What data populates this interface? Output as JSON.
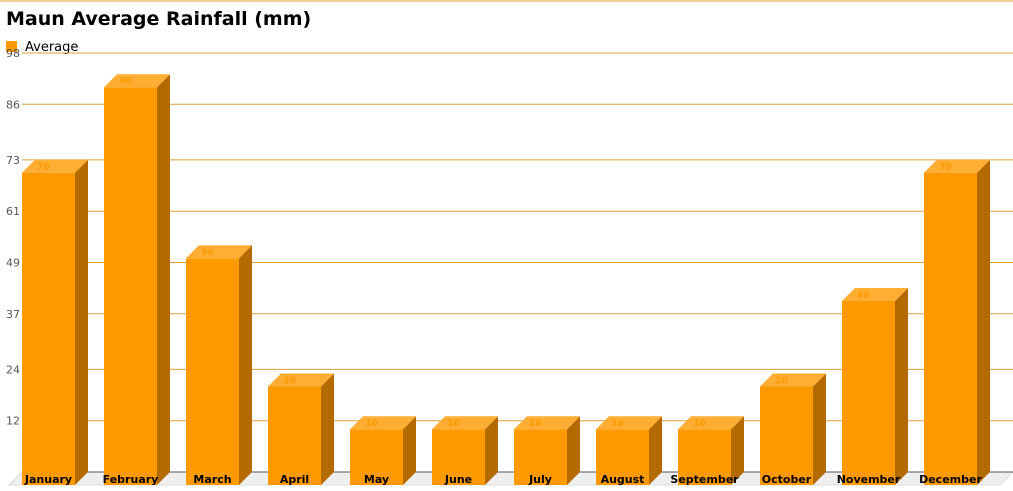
{
  "chart_data": {
    "type": "bar",
    "title": "Maun Average Rainfall (mm)",
    "categories": [
      "January",
      "February",
      "March",
      "April",
      "May",
      "June",
      "July",
      "August",
      "September",
      "October",
      "November",
      "December"
    ],
    "series": [
      {
        "name": "Average",
        "values": [
          70,
          90,
          50,
          20,
          10,
          10,
          10,
          10,
          10,
          20,
          40,
          70
        ]
      }
    ],
    "yticks": [
      12,
      24,
      37,
      49,
      61,
      73,
      86,
      98
    ],
    "ylim": [
      0,
      98
    ],
    "grid": true,
    "legend": "top-left",
    "colors": {
      "bar": "#ff9900",
      "bar_top": "#ffad33",
      "bar_side": "#b36b00",
      "grid": "#e0a030",
      "value_label": "#ff9900"
    }
  }
}
